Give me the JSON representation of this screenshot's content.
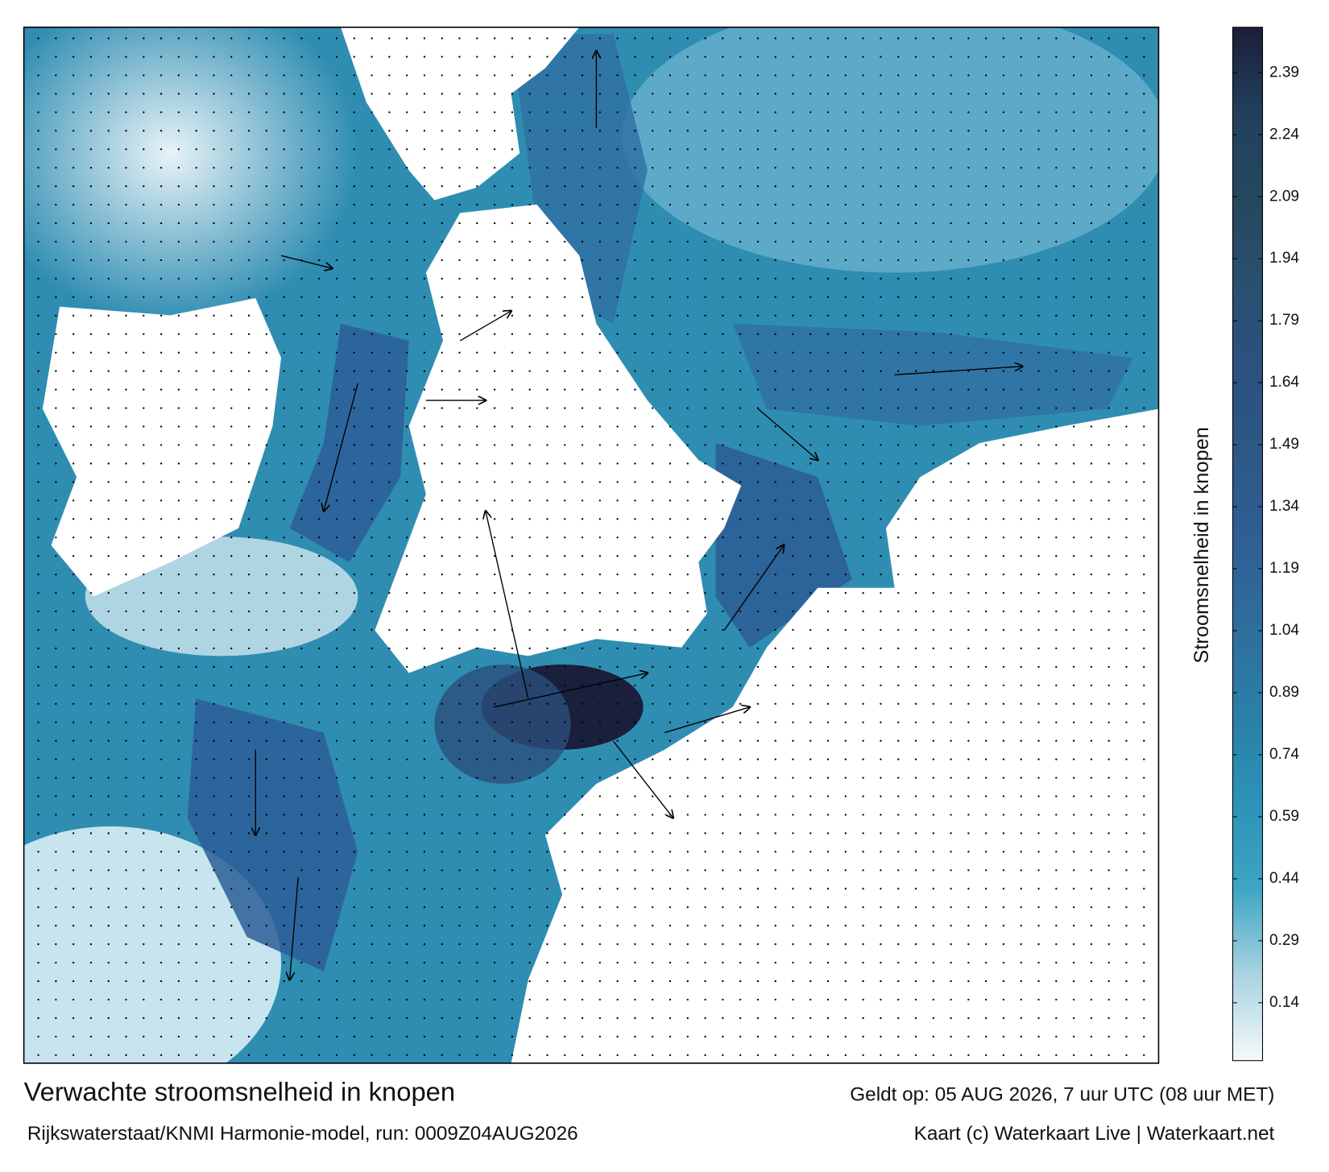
{
  "header": {
    "title": "Verwachte stroomsnelheid in knopen",
    "source": "Rijkswaterstaat/KNMI Harmonie-model, run: 0009Z04AUG2026",
    "valid": "Geldt op: 05 AUG 2026, 7 uur UTC (08 uur MET)",
    "credit": "Kaart (c) Waterkaart Live | Waterkaart.net"
  },
  "chart_data": {
    "type": "colorbar",
    "title": "Stroomsnelheid in knopen",
    "ylim": [
      0,
      2.5
    ],
    "yticks": [
      0.14,
      0.29,
      0.44,
      0.59,
      0.74,
      0.89,
      1.04,
      1.19,
      1.34,
      1.49,
      1.64,
      1.79,
      1.94,
      2.09,
      2.24,
      2.39
    ],
    "colors": [
      "#f4f9fb",
      "#a9d3e0",
      "#3fa4c4",
      "#2b93b8",
      "#2a7fa8",
      "#2e6f9c",
      "#2f5f96",
      "#2d5886",
      "#2b5180",
      "#2a5070",
      "#25475e",
      "#22405e",
      "#1c1d38"
    ]
  }
}
